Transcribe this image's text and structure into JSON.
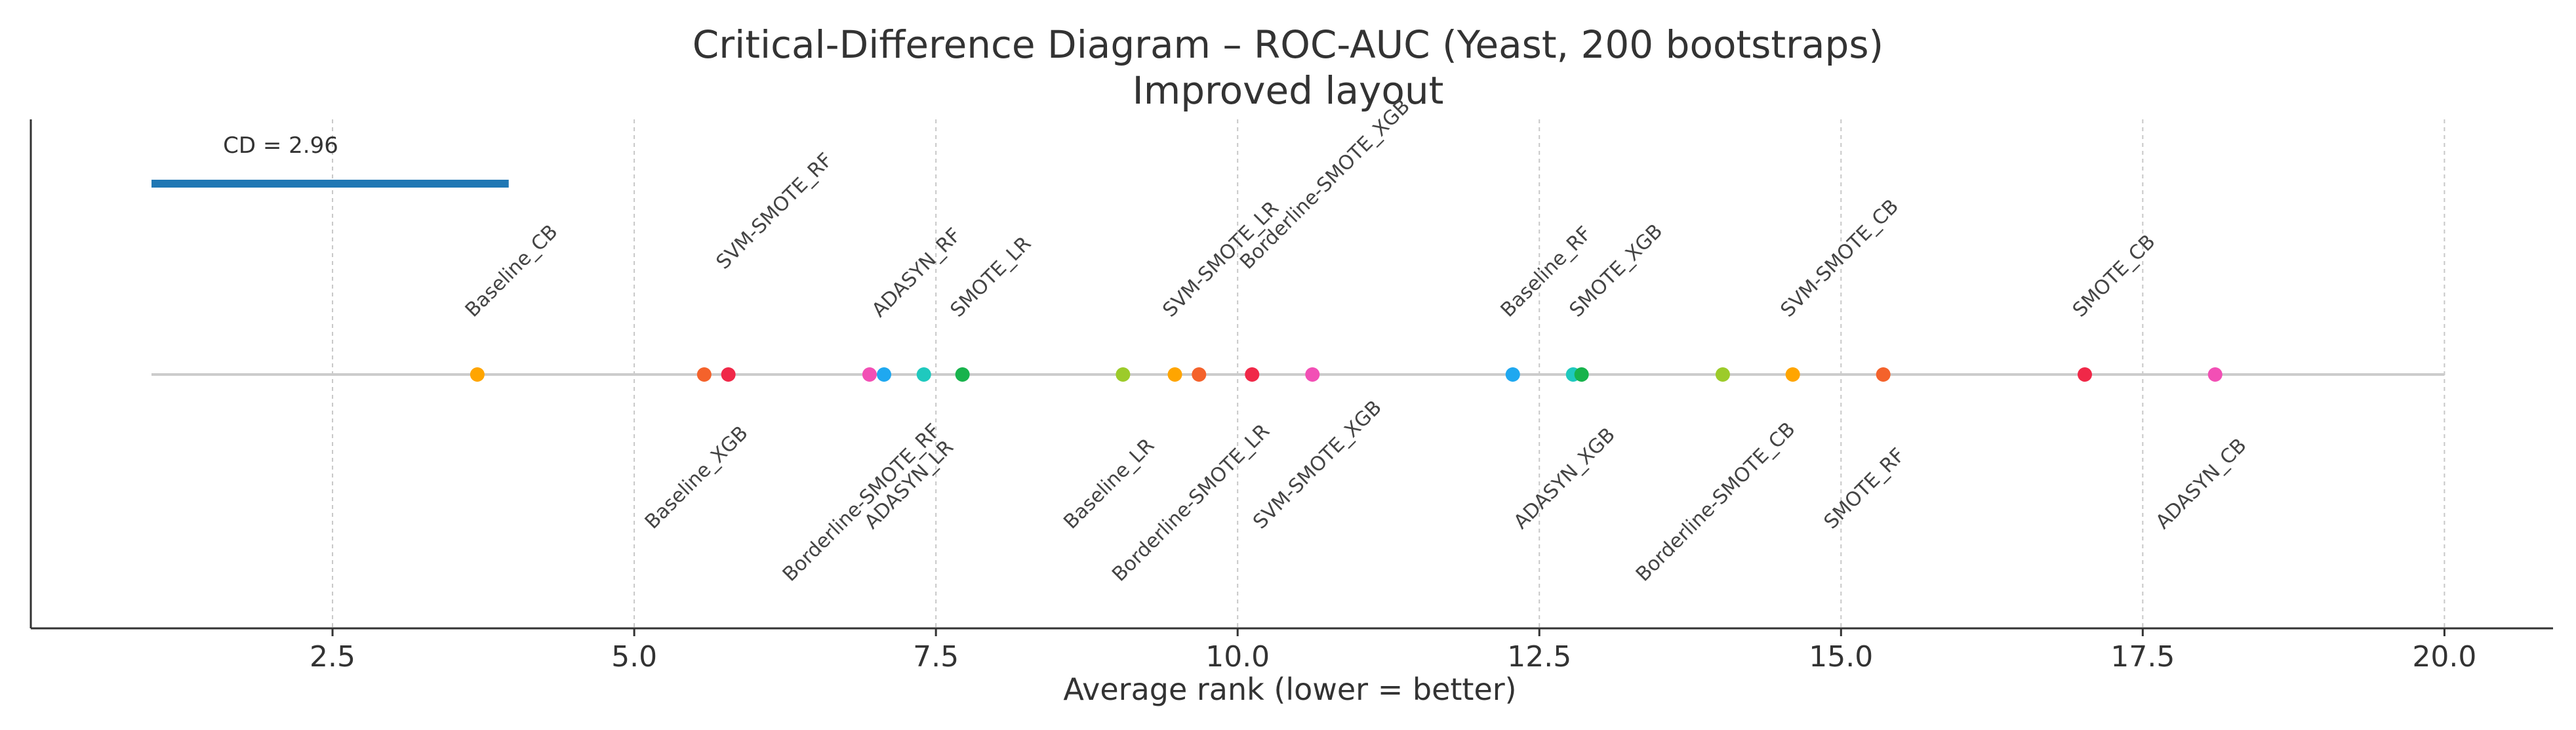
{
  "chart_data": {
    "type": "scatter",
    "title": "Critical-Difference Diagram – ROC-AUC (Yeast, 200 bootstraps)",
    "subtitle": "Improved layout",
    "xlabel": "Average rank (lower = better)",
    "ylabel": "",
    "xlim": [
      0.0,
      20.9
    ],
    "xticks": [
      "2.5",
      "5.0",
      "7.5",
      "10.0",
      "12.5",
      "15.0",
      "17.5",
      "20.0"
    ],
    "grid": true,
    "cd": {
      "label": "CD = 2.96",
      "value": 2.96,
      "start": 1.0,
      "end": 3.96,
      "color": "#1f77b4"
    },
    "methods": [
      {
        "name": "Baseline_CB",
        "rank": 3.7,
        "color": "#ffa500",
        "side": "above",
        "tier": 1
      },
      {
        "name": "Baseline_XGB",
        "rank": 5.58,
        "color": "#f4622b",
        "side": "below",
        "tier": 1
      },
      {
        "name": "SVM-SMOTE_RF",
        "rank": 5.78,
        "color": "#f02848",
        "side": "above",
        "tier": 2
      },
      {
        "name": "Borderline-SMOTE_RF",
        "rank": 6.95,
        "color": "#f24fb5",
        "side": "below",
        "tier": 2
      },
      {
        "name": "ADASYN_RF",
        "rank": 7.07,
        "color": "#1fa8f0",
        "side": "above",
        "tier": 1
      },
      {
        "name": "ADASYN_LR",
        "rank": 7.4,
        "color": "#1fc9be",
        "side": "below",
        "tier": 1
      },
      {
        "name": "SMOTE_LR",
        "rank": 7.72,
        "color": "#18b34c",
        "side": "above",
        "tier": 1
      },
      {
        "name": "Baseline_LR",
        "rank": 9.05,
        "color": "#9ccb2a",
        "side": "below",
        "tier": 1
      },
      {
        "name": "SVM-SMOTE_LR",
        "rank": 9.48,
        "color": "#ffa500",
        "side": "above",
        "tier": 1
      },
      {
        "name": "Borderline-SMOTE_LR",
        "rank": 9.68,
        "color": "#f4622b",
        "side": "below",
        "tier": 2
      },
      {
        "name": "Borderline-SMOTE_XGB",
        "rank": 10.12,
        "color": "#f02848",
        "side": "above",
        "tier": 2
      },
      {
        "name": "SVM-SMOTE_XGB",
        "rank": 10.62,
        "color": "#f24fb5",
        "side": "below",
        "tier": 1
      },
      {
        "name": "Baseline_RF",
        "rank": 12.28,
        "color": "#1fa8f0",
        "side": "above",
        "tier": 1
      },
      {
        "name": "ADASYN_XGB",
        "rank": 12.78,
        "color": "#1fc9be",
        "side": "below",
        "tier": 1
      },
      {
        "name": "SMOTE_XGB",
        "rank": 12.85,
        "color": "#18b34c",
        "side": "above",
        "tier": 1
      },
      {
        "name": "Borderline-SMOTE_CB",
        "rank": 14.02,
        "color": "#9ccb2a",
        "side": "below",
        "tier": 2
      },
      {
        "name": "SVM-SMOTE_CB",
        "rank": 14.6,
        "color": "#ffa500",
        "side": "above",
        "tier": 1
      },
      {
        "name": "SMOTE_RF",
        "rank": 15.35,
        "color": "#f4622b",
        "side": "below",
        "tier": 1
      },
      {
        "name": "SMOTE_CB",
        "rank": 17.02,
        "color": "#f02848",
        "side": "above",
        "tier": 1
      },
      {
        "name": "ADASYN_CB",
        "rank": 18.1,
        "color": "#f24fb5",
        "side": "below",
        "tier": 1
      }
    ]
  }
}
